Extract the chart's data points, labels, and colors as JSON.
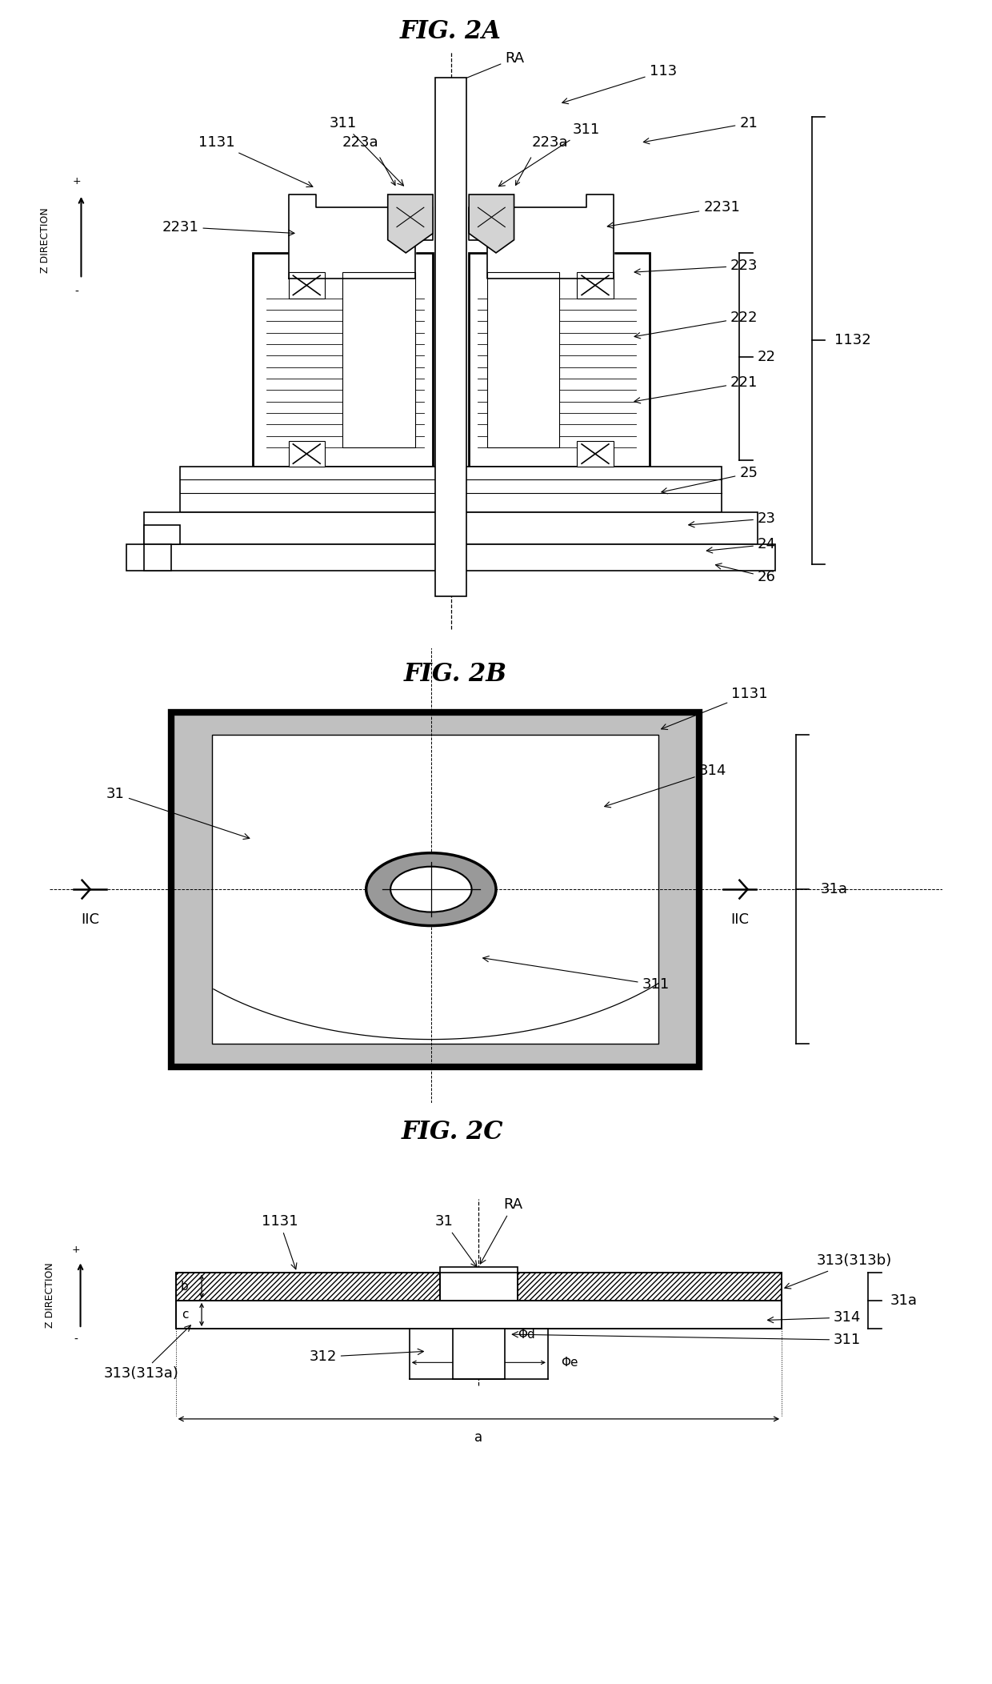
{
  "fig_title_2a": "FIG. 2A",
  "fig_title_2b": "FIG. 2B",
  "fig_title_2c": "FIG. 2C",
  "bg_color": "#ffffff",
  "line_color": "#000000",
  "font_italic_size": 22,
  "label_font_size": 13,
  "small_font_size": 11
}
